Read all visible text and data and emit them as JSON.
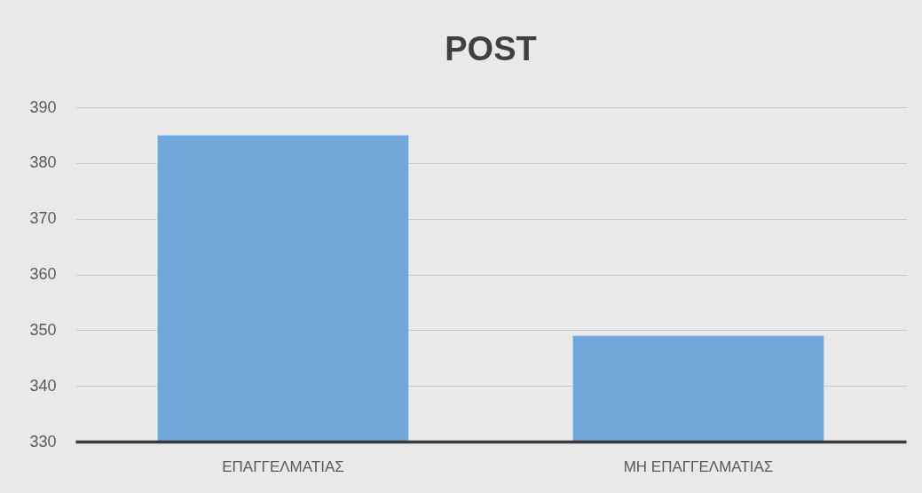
{
  "chart_data": {
    "type": "bar",
    "title": "POST",
    "categories": [
      "ΕΠΑΓΓΕΛΜΑΤΙΑΣ",
      "ΜΗ ΕΠΑΓΓΕΛΜΑΤΙΑΣ"
    ],
    "values": [
      385,
      349
    ],
    "color": "#70a6da",
    "ylim": [
      330,
      390
    ],
    "yticks": [
      330,
      340,
      350,
      360,
      370,
      380,
      390
    ],
    "grid": "y"
  }
}
